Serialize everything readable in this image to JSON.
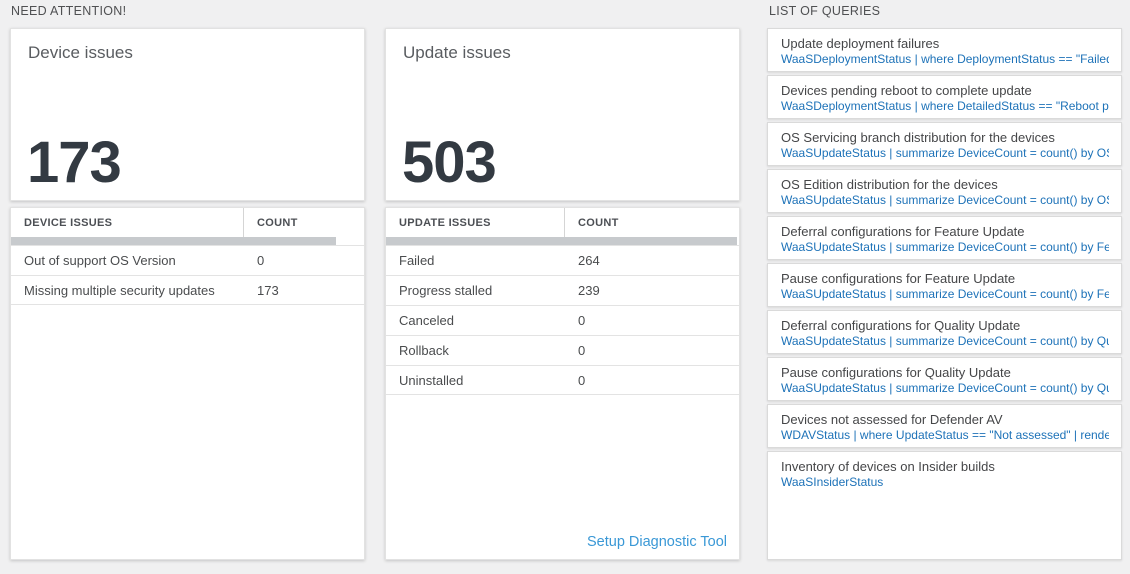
{
  "sections": {
    "need_attention": "NEED ATTENTION!",
    "list_of_queries": "LIST OF QUERIES"
  },
  "panels": {
    "device": {
      "title": "Device issues",
      "count": "173",
      "table": {
        "headers": [
          "DEVICE ISSUES",
          "COUNT"
        ],
        "rows": [
          [
            "Out of support OS Version",
            "0"
          ],
          [
            "Missing multiple security updates",
            "173"
          ]
        ]
      }
    },
    "update": {
      "title": "Update issues",
      "count": "503",
      "table": {
        "headers": [
          "UPDATE ISSUES",
          "COUNT"
        ],
        "rows": [
          [
            "Failed",
            "264"
          ],
          [
            "Progress stalled",
            "239"
          ],
          [
            "Canceled",
            "0"
          ],
          [
            "Rollback",
            "0"
          ],
          [
            "Uninstalled",
            "0"
          ]
        ]
      },
      "footer_link": "Setup Diagnostic Tool"
    }
  },
  "queries": {
    "items": [
      {
        "title": "Update deployment failures",
        "query": "WaaSDeploymentStatus | where DeploymentStatus == \"Failed\" |..."
      },
      {
        "title": "Devices pending reboot to complete update",
        "query": "WaaSDeploymentStatus | where DetailedStatus == \"Reboot pend..."
      },
      {
        "title": "OS Servicing branch distribution for the devices",
        "query": "WaaSUpdateStatus | summarize DeviceCount = count() by OSSer..."
      },
      {
        "title": "OS Edition distribution for the devices",
        "query": "WaaSUpdateStatus | summarize DeviceCount = count() by OSEdit..."
      },
      {
        "title": "Deferral configurations for Feature Update",
        "query": "WaaSUpdateStatus | summarize DeviceCount = count() by Featur..."
      },
      {
        "title": "Pause configurations for Feature Update",
        "query": "WaaSUpdateStatus | summarize DeviceCount = count() by Featur..."
      },
      {
        "title": "Deferral configurations for Quality Update",
        "query": "WaaSUpdateStatus | summarize DeviceCount = count() by Qualit..."
      },
      {
        "title": "Pause configurations for Quality Update",
        "query": "WaaSUpdateStatus | summarize DeviceCount = count() by Qualit..."
      },
      {
        "title": "Devices not assessed for Defender AV",
        "query": "WDAVStatus | where UpdateStatus == \"Not assessed\" | render ta..."
      },
      {
        "title": "Inventory of devices on Insider builds",
        "query": "WaaSInsiderStatus"
      }
    ]
  },
  "colors": {
    "page_background": "#f0f0f1",
    "query_link_blue": "#1d72b8",
    "setup_link_blue": "#3a98d6",
    "big_number": "#333a42",
    "scrollbar_thumb": "#c7cacd"
  }
}
